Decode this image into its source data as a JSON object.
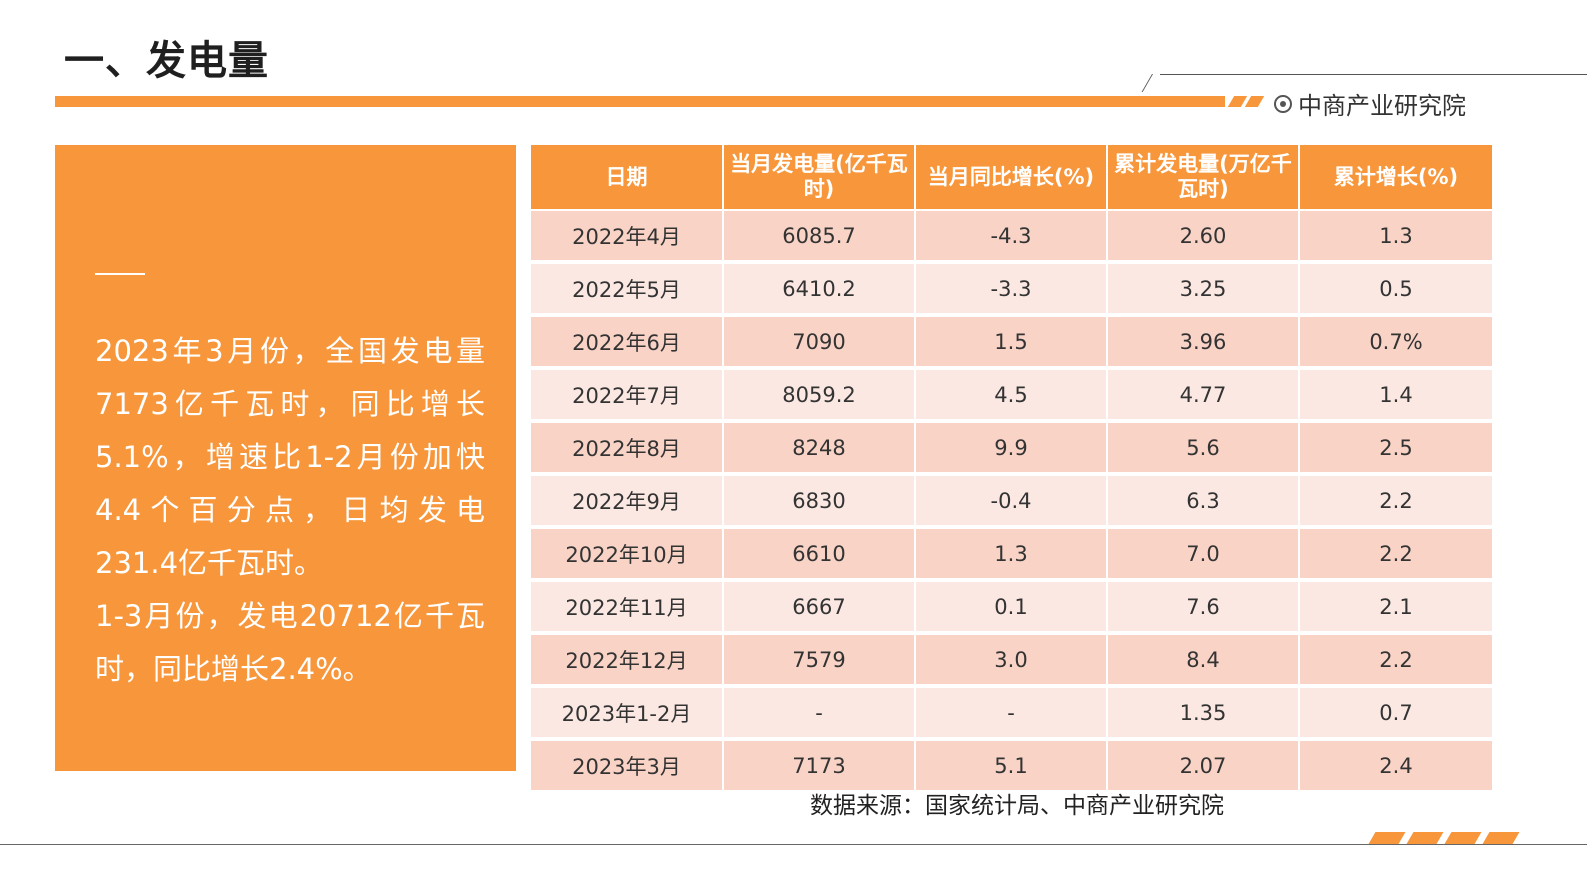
{
  "title": "一、发电量",
  "brand": {
    "name": "中商产业研究院",
    "icon": "target-circle-icon"
  },
  "side_panel": {
    "paragraph1": "2023年3月份，全国发电量7173亿千瓦时，同比增长5.1%，增速比1-2月份加快4.4个百分点，日均发电231.4亿千瓦时。",
    "paragraph2": "1-3月份，发电20712亿千瓦时，同比增长2.4%。"
  },
  "table": {
    "headers": [
      "日期",
      "当月发电量(亿千瓦时)",
      "当月同比增长(%)",
      "累计发电量(万亿千瓦时)",
      "累计增长(%)"
    ],
    "rows": [
      [
        "2022年4月",
        "6085.7",
        "-4.3",
        "2.60",
        "1.3"
      ],
      [
        "2022年5月",
        "6410.2",
        "-3.3",
        "3.25",
        "0.5"
      ],
      [
        "2022年6月",
        "7090",
        "1.5",
        "3.96",
        "0.7%"
      ],
      [
        "2022年7月",
        "8059.2",
        "4.5",
        "4.77",
        "1.4"
      ],
      [
        "2022年8月",
        "8248",
        "9.9",
        "5.6",
        "2.5"
      ],
      [
        "2022年9月",
        "6830",
        "-0.4",
        "6.3",
        "2.2"
      ],
      [
        "2022年10月",
        "6610",
        "1.3",
        "7.0",
        "2.2"
      ],
      [
        "2022年11月",
        "6667",
        "0.1",
        "7.6",
        "2.1"
      ],
      [
        "2022年12月",
        "7579",
        "3.0",
        "8.4",
        "2.2"
      ],
      [
        "2023年1-2月",
        "-",
        "-",
        "1.35",
        "0.7"
      ],
      [
        "2023年3月",
        "7173",
        "5.1",
        "2.07",
        "2.4"
      ]
    ]
  },
  "source": "数据来源：国家统计局、中商产业研究院",
  "colors": {
    "accent": "#f7963a",
    "row_dark": "#f8d3c6",
    "row_light": "#fbe8e2"
  }
}
